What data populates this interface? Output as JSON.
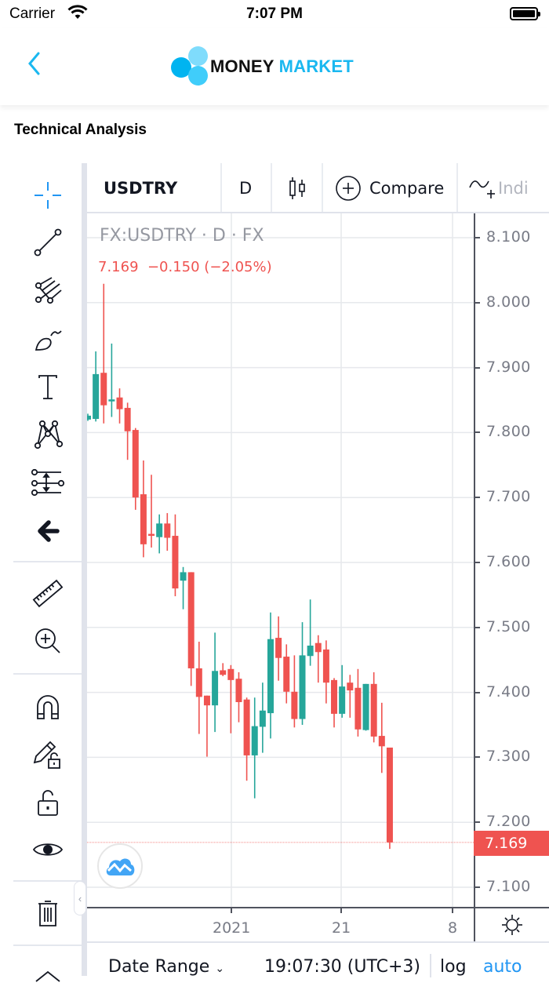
{
  "status_bar": {
    "carrier": "Carrier",
    "time": "7:07 PM"
  },
  "nav": {
    "logo_left": "MONEY",
    "logo_right": "MARKET"
  },
  "page": {
    "title": "Technical Analysis"
  },
  "toolbar": {
    "symbol": "USDTRY",
    "interval": "D",
    "compare": "Compare",
    "indicators": "Indi"
  },
  "left_tools": [
    "crosshair",
    "trend-line",
    "pitchfork",
    "brush",
    "text",
    "pattern",
    "prediction",
    "back-arrow",
    "ruler",
    "zoom-in",
    "magnet",
    "lock-drawings",
    "lock",
    "eye",
    "trash",
    "chevron-up"
  ],
  "legend": {
    "title": "FX:USDTRY · D · FX",
    "values": "7.169  −0.150 (−2.05%)"
  },
  "price_axis": {
    "labels": [
      "8.100",
      "8.000",
      "7.900",
      "7.800",
      "7.700",
      "7.600",
      "7.500",
      "7.400",
      "7.300",
      "7.200",
      "7.100"
    ],
    "last_price": "7.169"
  },
  "time_axis": {
    "labels": [
      "2021",
      "21",
      "8"
    ]
  },
  "bottom_bar": {
    "date_range": "Date Range",
    "clock": "19:07:30 (UTC+3)",
    "log": "log",
    "auto": "auto"
  },
  "colors": {
    "up": "#26a69a",
    "down": "#ef5350",
    "accent": "#2196f3",
    "logo_blue": "#1ab8f0"
  },
  "chart_data": {
    "type": "candlestick",
    "title": "FX:USDTRY · D · FX",
    "symbol": "USDTRY",
    "interval": "D",
    "ylim": [
      7.06,
      8.13
    ],
    "y_ticks": [
      8.1,
      8.0,
      7.9,
      7.8,
      7.7,
      7.6,
      7.5,
      7.4,
      7.3,
      7.2,
      7.1
    ],
    "x_ticks": [
      "2021",
      "21",
      "8"
    ],
    "last": 7.169,
    "change": -0.15,
    "change_pct": -2.05,
    "candles": [
      {
        "o": 7.82,
        "h": 7.829,
        "l": 7.818,
        "c": 7.826
      },
      {
        "o": 7.821,
        "h": 7.925,
        "l": 7.817,
        "c": 7.89
      },
      {
        "o": 7.892,
        "h": 8.029,
        "l": 7.814,
        "c": 7.842
      },
      {
        "o": 7.849,
        "h": 7.937,
        "l": 7.824,
        "c": 7.851
      },
      {
        "o": 7.854,
        "h": 7.868,
        "l": 7.814,
        "c": 7.836
      },
      {
        "o": 7.838,
        "h": 7.846,
        "l": 7.758,
        "c": 7.802
      },
      {
        "o": 7.804,
        "h": 7.807,
        "l": 7.681,
        "c": 7.7
      },
      {
        "o": 7.705,
        "h": 7.757,
        "l": 7.608,
        "c": 7.628
      },
      {
        "o": 7.644,
        "h": 7.735,
        "l": 7.623,
        "c": 7.641
      },
      {
        "o": 7.639,
        "h": 7.674,
        "l": 7.614,
        "c": 7.66
      },
      {
        "o": 7.66,
        "h": 7.676,
        "l": 7.618,
        "c": 7.638
      },
      {
        "o": 7.641,
        "h": 7.674,
        "l": 7.548,
        "c": 7.56
      },
      {
        "o": 7.572,
        "h": 7.593,
        "l": 7.528,
        "c": 7.585
      },
      {
        "o": 7.585,
        "h": 7.585,
        "l": 7.41,
        "c": 7.437
      },
      {
        "o": 7.437,
        "h": 7.478,
        "l": 7.336,
        "c": 7.393
      },
      {
        "o": 7.395,
        "h": 7.395,
        "l": 7.301,
        "c": 7.38
      },
      {
        "o": 7.38,
        "h": 7.492,
        "l": 7.339,
        "c": 7.433
      },
      {
        "o": 7.434,
        "h": 7.445,
        "l": 7.425,
        "c": 7.427
      },
      {
        "o": 7.436,
        "h": 7.442,
        "l": 7.337,
        "c": 7.419
      },
      {
        "o": 7.421,
        "h": 7.431,
        "l": 7.354,
        "c": 7.385
      },
      {
        "o": 7.389,
        "h": 7.392,
        "l": 7.264,
        "c": 7.303
      },
      {
        "o": 7.303,
        "h": 7.392,
        "l": 7.237,
        "c": 7.348
      },
      {
        "o": 7.347,
        "h": 7.415,
        "l": 7.307,
        "c": 7.372
      },
      {
        "o": 7.368,
        "h": 7.523,
        "l": 7.329,
        "c": 7.482
      },
      {
        "o": 7.484,
        "h": 7.517,
        "l": 7.418,
        "c": 7.453
      },
      {
        "o": 7.455,
        "h": 7.474,
        "l": 7.383,
        "c": 7.401
      },
      {
        "o": 7.401,
        "h": 7.457,
        "l": 7.346,
        "c": 7.359
      },
      {
        "o": 7.359,
        "h": 7.508,
        "l": 7.35,
        "c": 7.457
      },
      {
        "o": 7.456,
        "h": 7.543,
        "l": 7.441,
        "c": 7.472
      },
      {
        "o": 7.476,
        "h": 7.488,
        "l": 7.415,
        "c": 7.462
      },
      {
        "o": 7.466,
        "h": 7.48,
        "l": 7.383,
        "c": 7.415
      },
      {
        "o": 7.419,
        "h": 7.422,
        "l": 7.346,
        "c": 7.367
      },
      {
        "o": 7.367,
        "h": 7.442,
        "l": 7.361,
        "c": 7.409
      },
      {
        "o": 7.415,
        "h": 7.427,
        "l": 7.361,
        "c": 7.403
      },
      {
        "o": 7.407,
        "h": 7.436,
        "l": 7.332,
        "c": 7.343
      },
      {
        "o": 7.342,
        "h": 7.413,
        "l": 7.341,
        "c": 7.413
      },
      {
        "o": 7.413,
        "h": 7.431,
        "l": 7.323,
        "c": 7.332
      },
      {
        "o": 7.333,
        "h": 7.384,
        "l": 7.276,
        "c": 7.317
      },
      {
        "o": 7.315,
        "h": 7.315,
        "l": 7.159,
        "c": 7.169
      }
    ]
  }
}
